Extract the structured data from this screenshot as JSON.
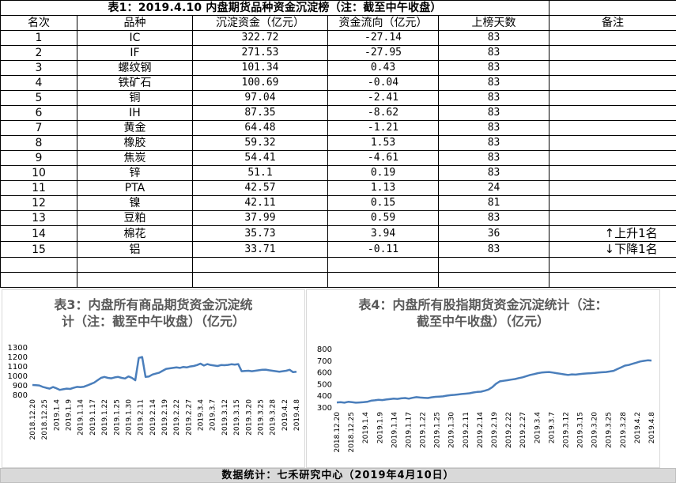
{
  "table": {
    "title": "表1：2019.4.10 内盘期货品种资金沉淀榜（注：截至中午收盘）",
    "headers": [
      "名次",
      "品种",
      "沉淀资金（亿元）",
      "资金流向（亿元）",
      "上榜天数",
      "备注"
    ],
    "rows": [
      {
        "rank": "1",
        "name": "IC",
        "amount": "322.72",
        "flow": "-27.14",
        "days": "83",
        "note": ""
      },
      {
        "rank": "2",
        "name": "IF",
        "amount": "271.53",
        "flow": "-27.95",
        "days": "83",
        "note": ""
      },
      {
        "rank": "3",
        "name": "螺纹钢",
        "amount": "101.34",
        "flow": "0.43",
        "days": "83",
        "note": ""
      },
      {
        "rank": "4",
        "name": "铁矿石",
        "amount": "100.69",
        "flow": "-0.04",
        "days": "83",
        "note": ""
      },
      {
        "rank": "5",
        "name": "铜",
        "amount": "97.04",
        "flow": "-2.41",
        "days": "83",
        "note": ""
      },
      {
        "rank": "6",
        "name": "IH",
        "amount": "87.35",
        "flow": "-8.62",
        "days": "83",
        "note": ""
      },
      {
        "rank": "7",
        "name": "黄金",
        "amount": "64.48",
        "flow": "-1.21",
        "days": "83",
        "note": ""
      },
      {
        "rank": "8",
        "name": "橡胶",
        "amount": "59.32",
        "flow": "1.53",
        "days": "83",
        "note": ""
      },
      {
        "rank": "9",
        "name": "焦炭",
        "amount": "54.41",
        "flow": "-4.61",
        "days": "83",
        "note": ""
      },
      {
        "rank": "10",
        "name": "锌",
        "amount": "51.1",
        "flow": "0.19",
        "days": "83",
        "note": ""
      },
      {
        "rank": "11",
        "name": "PTA",
        "amount": "42.57",
        "flow": "1.13",
        "days": "24",
        "note": ""
      },
      {
        "rank": "12",
        "name": "镍",
        "amount": "42.11",
        "flow": "0.15",
        "days": "81",
        "note": ""
      },
      {
        "rank": "13",
        "name": "豆粕",
        "amount": "37.99",
        "flow": "0.59",
        "days": "83",
        "note": ""
      },
      {
        "rank": "14",
        "name": "棉花",
        "amount": "35.73",
        "flow": "3.94",
        "days": "36",
        "note": "上升1名",
        "note_dir": "up"
      },
      {
        "rank": "15",
        "name": "铝",
        "amount": "33.71",
        "flow": "-0.11",
        "days": "83",
        "note": "下降1名",
        "note_dir": "down"
      }
    ],
    "empty_rows": 2
  },
  "chart_data": [
    {
      "type": "line",
      "title": "表3：内盘所有商品期货资金沉淀统计（注：截至中午收盘）（亿元）",
      "title_lines": [
        "表3：内盘所有商品期货资金沉淀统",
        "计（注：截至中午收盘）（亿元）"
      ],
      "ylim": [
        800,
        1300
      ],
      "yticks": [
        800,
        900,
        1000,
        1100,
        1200,
        1300
      ],
      "xtick_labels": [
        "2018.12.20",
        "2018.12.25",
        "2019.1.4",
        "2019.1.9",
        "2019.1.14",
        "2019.1.17",
        "2019.1.22",
        "2019.1.25",
        "2019.1.30",
        "2019.2.11",
        "2019.2.14",
        "2019.2.19",
        "2019.2.22",
        "2019.2.27",
        "2019.3.4",
        "2019.3.7",
        "2019.3.12",
        "2019.3.15",
        "2019.3.20",
        "2019.3.25",
        "2019.3.28",
        "2019.4.2",
        "2019.4.8"
      ],
      "line_color": "#4a7ebb",
      "values": [
        900,
        898,
        895,
        880,
        870,
        862,
        878,
        865,
        848,
        855,
        862,
        858,
        870,
        880,
        877,
        882,
        895,
        910,
        925,
        950,
        975,
        985,
        975,
        970,
        980,
        985,
        975,
        968,
        990,
        975,
        950,
        1185,
        1195,
        985,
        990,
        1010,
        1020,
        1030,
        1050,
        1070,
        1075,
        1080,
        1085,
        1080,
        1090,
        1085,
        1095,
        1100,
        1110,
        1125,
        1105,
        1120,
        1110,
        1105,
        1100,
        1110,
        1108,
        1112,
        1118,
        1115,
        1120,
        1045,
        1048,
        1050,
        1045,
        1050,
        1055,
        1060,
        1062,
        1055,
        1050,
        1045,
        1040,
        1045,
        1050,
        1060,
        1035,
        1040
      ]
    },
    {
      "type": "line",
      "title": "表4：内盘所有股指期货资金沉淀统计（注：截至中午收盘）（亿元）",
      "title_lines": [
        "表4：内盘所有股指期货资金沉淀统计（注：",
        "截至中午收盘）（亿元）"
      ],
      "ylim": [
        300,
        800
      ],
      "yticks": [
        300,
        400,
        500,
        600,
        700,
        800
      ],
      "xtick_labels": [
        "2018.12.20",
        "2018.12.25",
        "2019.1.4",
        "2019.1.9",
        "2019.1.14",
        "2019.1.17",
        "2019.1.22",
        "2019.1.25",
        "2019.1.30",
        "2019.2.11",
        "2019.2.14",
        "2019.2.19",
        "2019.2.22",
        "2019.2.27",
        "2019.3.4",
        "2019.3.7",
        "2019.3.12",
        "2019.3.15",
        "2019.3.20",
        "2019.3.25",
        "2019.3.28",
        "2019.4.2",
        "2019.4.8"
      ],
      "line_color": "#4a7ebb",
      "values": [
        340,
        342,
        338,
        345,
        342,
        338,
        340,
        342,
        345,
        355,
        358,
        362,
        360,
        365,
        368,
        372,
        370,
        375,
        378,
        372,
        380,
        385,
        382,
        380,
        378,
        384,
        388,
        390,
        392,
        398,
        402,
        405,
        408,
        412,
        415,
        418,
        425,
        430,
        432,
        440,
        450,
        470,
        500,
        520,
        525,
        530,
        535,
        540,
        548,
        555,
        565,
        575,
        582,
        590,
        595,
        598,
        600,
        595,
        590,
        585,
        580,
        575,
        580,
        578,
        582,
        585,
        588,
        590,
        592,
        595,
        598,
        600,
        605,
        610,
        625,
        640,
        655,
        660,
        670,
        680,
        690,
        695,
        700,
        698
      ]
    }
  ],
  "footer": "数据统计：七禾研究中心（2019年4月10日）"
}
